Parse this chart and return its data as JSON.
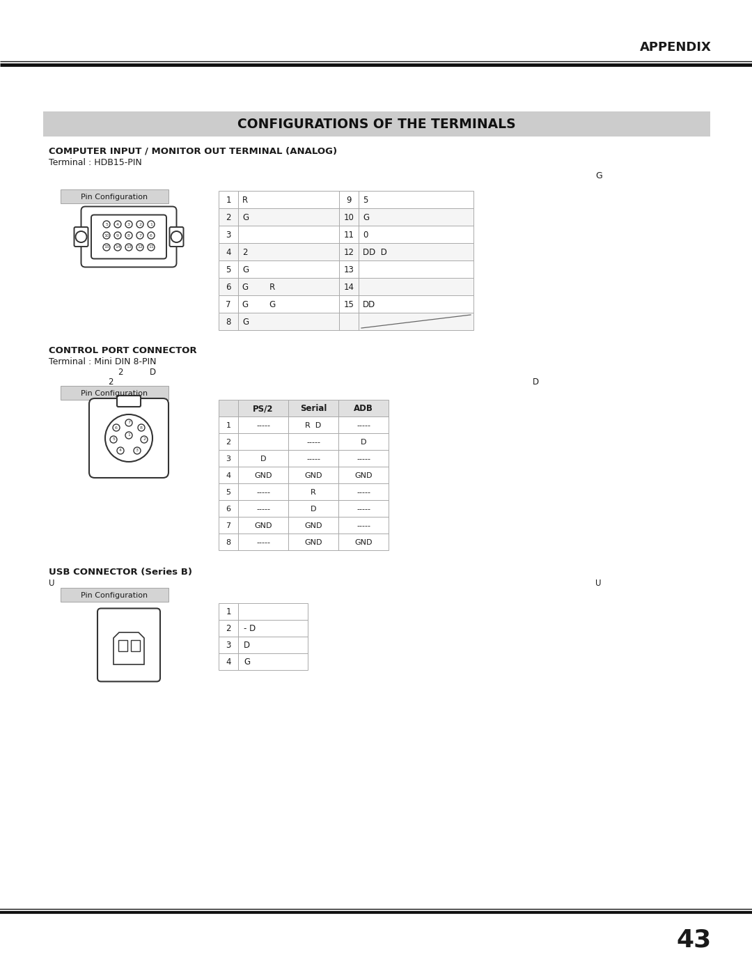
{
  "page_title": "APPENDIX",
  "section_title": "CONFIGURATIONS OF THE TERMINALS",
  "section1_title": "COMPUTER INPUT / MONITOR OUT TERMINAL (ANALOG)",
  "section1_subtitle": "Terminal : HDB15-PIN",
  "section1_note": "G",
  "section1_table_rows": [
    [
      "1",
      "R",
      "9",
      "5"
    ],
    [
      "2",
      "G",
      "10",
      "G"
    ],
    [
      "3",
      "",
      "11",
      "0"
    ],
    [
      "4",
      "2",
      "12",
      "DD  D"
    ],
    [
      "5",
      "G",
      "13",
      ""
    ],
    [
      "6",
      "G        R",
      "14",
      ""
    ],
    [
      "7",
      "G        G",
      "15",
      "DD"
    ],
    [
      "8",
      "G",
      "",
      ""
    ]
  ],
  "section2_title": "CONTROL PORT CONNECTOR",
  "section2_subtitle": "Terminal : Mini DIN 8-PIN",
  "section2_note1": "2          D",
  "section2_note2": "2",
  "section2_note3": "D",
  "section2_headers": [
    "",
    "PS/2",
    "Serial",
    "ADB"
  ],
  "section2_rows": [
    [
      "1",
      "-----",
      "R  D",
      "-----"
    ],
    [
      "2",
      "",
      "-----",
      "D"
    ],
    [
      "3",
      "D",
      "-----",
      "-----"
    ],
    [
      "4",
      "GND",
      "GND",
      "GND"
    ],
    [
      "5",
      "-----",
      "R",
      "-----"
    ],
    [
      "6",
      "-----",
      "D",
      "-----"
    ],
    [
      "7",
      "GND",
      "GND",
      "-----"
    ],
    [
      "8",
      "-----",
      "GND",
      "GND"
    ]
  ],
  "section3_title": "USB CONNECTOR (Series B)",
  "section3_note1": "U",
  "section3_note2": "U",
  "section3_rows": [
    [
      "1",
      ""
    ],
    [
      "2",
      "- D"
    ],
    [
      "3",
      "D"
    ],
    [
      "4",
      "G"
    ]
  ],
  "page_number": "43",
  "bg_color": "#ffffff",
  "header_bg": "#cccccc",
  "pin_config_bg": "#d4d4d4",
  "text_color": "#1a1a1a",
  "title_color": "#111111",
  "grid_color": "#aaaaaa",
  "line_color": "#333333"
}
